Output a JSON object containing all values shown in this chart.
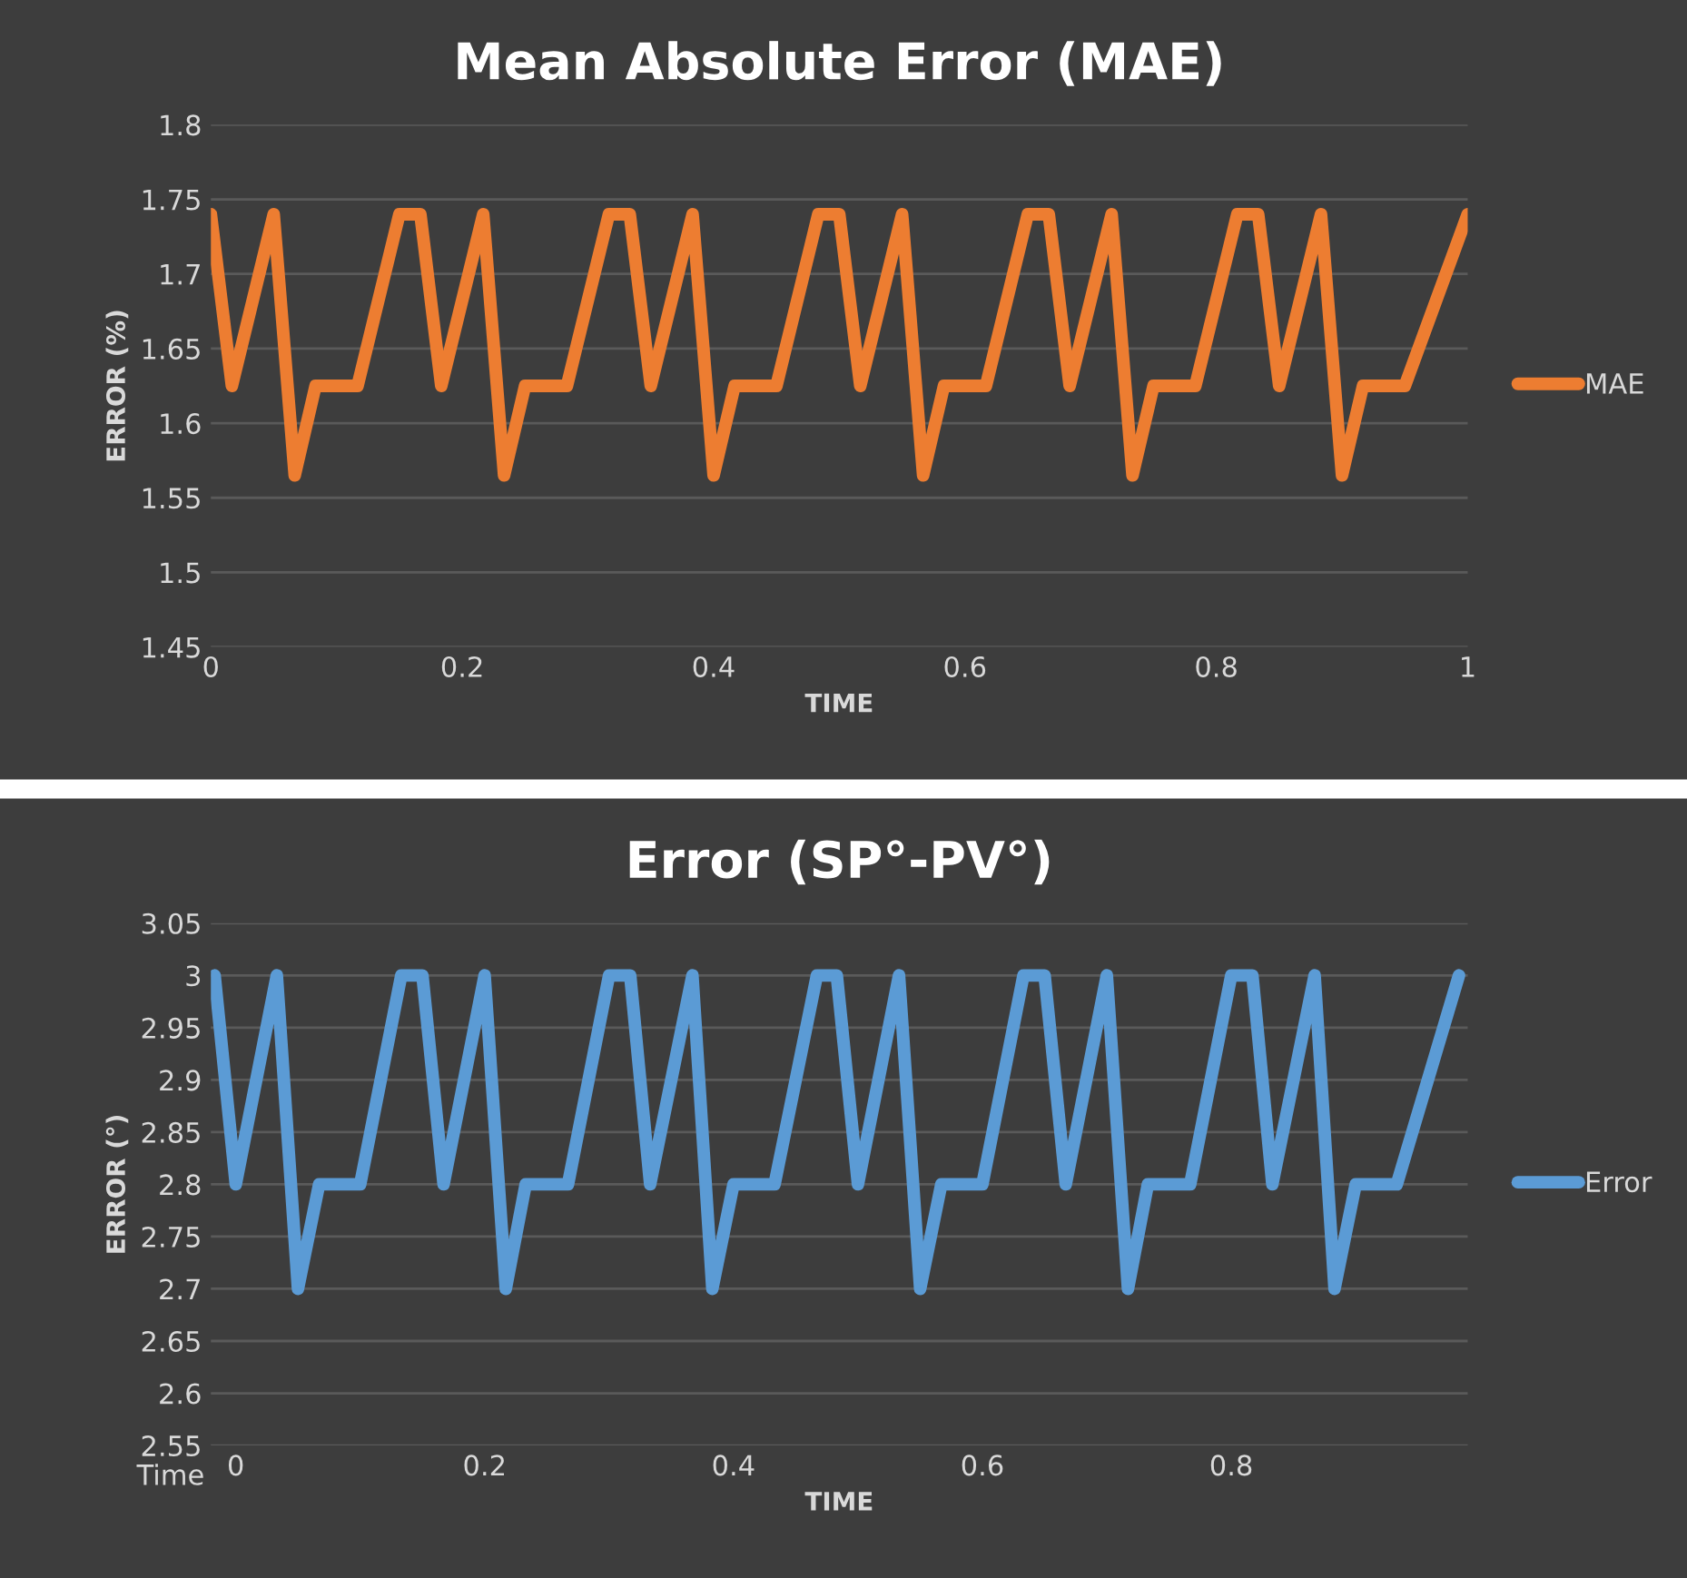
{
  "chart_data": [
    {
      "type": "line",
      "title": "Mean Absolute Error (MAE)",
      "xlabel": "TIME",
      "ylabel": "ERROR (%)",
      "x": [
        0,
        0.0167,
        0.05,
        0.0667,
        0.0833,
        0.1167,
        0.15,
        0.1667,
        0.1833,
        0.2167,
        0.2333,
        0.25,
        0.2833,
        0.3167,
        0.3333,
        0.35,
        0.3833,
        0.4,
        0.4167,
        0.45,
        0.4833,
        0.5,
        0.5167,
        0.55,
        0.5667,
        0.5833,
        0.6167,
        0.65,
        0.6667,
        0.6833,
        0.7167,
        0.7333,
        0.75,
        0.7833,
        0.8167,
        0.8333,
        0.85,
        0.8833,
        0.9,
        0.9167,
        0.95,
        1
      ],
      "series": [
        {
          "name": "MAE",
          "color": "#ed7d31",
          "values": [
            1.74,
            1.625,
            1.74,
            1.565,
            1.625,
            1.625,
            1.74,
            1.74,
            1.625,
            1.74,
            1.565,
            1.625,
            1.625,
            1.74,
            1.74,
            1.625,
            1.74,
            1.565,
            1.625,
            1.625,
            1.74,
            1.74,
            1.625,
            1.74,
            1.565,
            1.625,
            1.625,
            1.74,
            1.74,
            1.625,
            1.74,
            1.565,
            1.625,
            1.625,
            1.74,
            1.74,
            1.625,
            1.74,
            1.565,
            1.625,
            1.625,
            1.74
          ]
        }
      ],
      "xlim": [
        0,
        1
      ],
      "xticks": [
        0,
        0.2,
        0.4,
        0.6,
        0.8,
        1
      ],
      "ylim": [
        1.45,
        1.8
      ],
      "yticks": [
        1.45,
        1.5,
        1.55,
        1.6,
        1.65,
        1.7,
        1.75,
        1.8
      ],
      "grid": "y",
      "legend": "right",
      "marker": "none",
      "line_style": "solid"
    },
    {
      "type": "line",
      "title": "Error (SP°-PV°)",
      "xlabel": "TIME",
      "ylabel": "ERROR (°)",
      "annotations": [
        "Time"
      ],
      "x": [
        -0.017,
        0,
        0.033,
        0.05,
        0.067,
        0.1,
        0.133,
        0.15,
        0.167,
        0.2,
        0.217,
        0.233,
        0.267,
        0.3,
        0.317,
        0.333,
        0.367,
        0.383,
        0.4,
        0.433,
        0.467,
        0.483,
        0.5,
        0.533,
        0.55,
        0.567,
        0.6,
        0.633,
        0.65,
        0.667,
        0.7,
        0.717,
        0.733,
        0.767,
        0.8,
        0.817,
        0.833,
        0.867,
        0.883,
        0.9,
        0.933,
        0.983
      ],
      "series": [
        {
          "name": "Error",
          "color": "#5b9bd5",
          "values": [
            3.0,
            2.8,
            3.0,
            2.7,
            2.8,
            2.8,
            3.0,
            3.0,
            2.8,
            3.0,
            2.7,
            2.8,
            2.8,
            3.0,
            3.0,
            2.8,
            3.0,
            2.7,
            2.8,
            2.8,
            3.0,
            3.0,
            2.8,
            3.0,
            2.7,
            2.8,
            2.8,
            3.0,
            3.0,
            2.8,
            3.0,
            2.7,
            2.8,
            2.8,
            3.0,
            3.0,
            2.8,
            3.0,
            2.7,
            2.8,
            2.8,
            3.0
          ]
        }
      ],
      "xlim": [
        -0.02,
        0.99
      ],
      "xticks": [
        0,
        0.2,
        0.4,
        0.6,
        0.8
      ],
      "ylim": [
        2.55,
        3.05
      ],
      "yticks": [
        2.55,
        2.6,
        2.65,
        2.7,
        2.75,
        2.8,
        2.85,
        2.9,
        2.95,
        {
          "value": 3.0,
          "label": "3"
        },
        3.05
      ],
      "grid": "y",
      "legend": "right",
      "marker": "none",
      "line_style": "solid"
    }
  ]
}
